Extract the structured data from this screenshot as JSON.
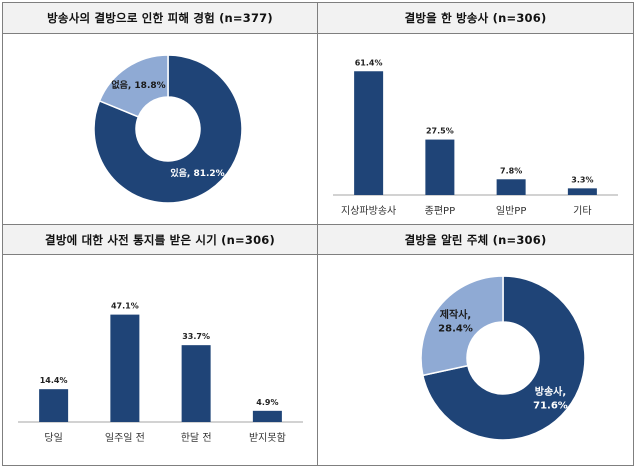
{
  "charts": {
    "damage": {
      "title": "방송사의 결방으로 인한 피해 경험 (n=377)"
    },
    "broadcaster": {
      "title": "결방을 한 방송사 (n=306)"
    },
    "notice": {
      "title": "결방에 대한 사전 통지를 받은 시기 (n=306)"
    },
    "notifier": {
      "title": "결방을 알린 주체 (n=306)"
    }
  },
  "colors": {
    "dark_blue": "#1f4477",
    "light_blue": "#8faad4",
    "axis": "#a6a6a6"
  },
  "chart_data": [
    {
      "id": "damage",
      "type": "pie",
      "donut": true,
      "title": "방송사의 결방으로 인한 피해 경험 (n=377)",
      "slices": [
        {
          "label": "있음, 81.2%",
          "value": 81.2,
          "color": "#1f4477"
        },
        {
          "label": "없음, 18.8%",
          "value": 18.8,
          "color": "#8faad4"
        }
      ]
    },
    {
      "id": "broadcaster",
      "type": "bar",
      "title": "결방을 한 방송사 (n=306)",
      "categories": [
        "지상파방송사",
        "종편PP",
        "일반PP",
        "기타"
      ],
      "values": [
        61.4,
        27.5,
        7.8,
        3.3
      ],
      "data_labels": [
        "61.4%",
        "27.5%",
        "7.8%",
        "3.3%"
      ],
      "ylim": [
        0,
        65
      ]
    },
    {
      "id": "notice",
      "type": "bar",
      "title": "결방에 대한 사전 통지를 받은 시기 (n=306)",
      "categories": [
        "당일",
        "일주일 전",
        "한달 전",
        "받지못함"
      ],
      "values": [
        14.4,
        47.1,
        33.7,
        4.9
      ],
      "data_labels": [
        "14.4%",
        "47.1%",
        "33.7%",
        "4.9%"
      ],
      "ylim": [
        0,
        50
      ]
    },
    {
      "id": "notifier",
      "type": "pie",
      "donut": true,
      "title": "결방을 알린 주체 (n=306)",
      "slices": [
        {
          "label": "방송사, 71.6%",
          "value": 71.6,
          "color": "#1f4477"
        },
        {
          "label": "제작사, 28.4%",
          "value": 28.4,
          "color": "#8faad4"
        }
      ]
    }
  ]
}
